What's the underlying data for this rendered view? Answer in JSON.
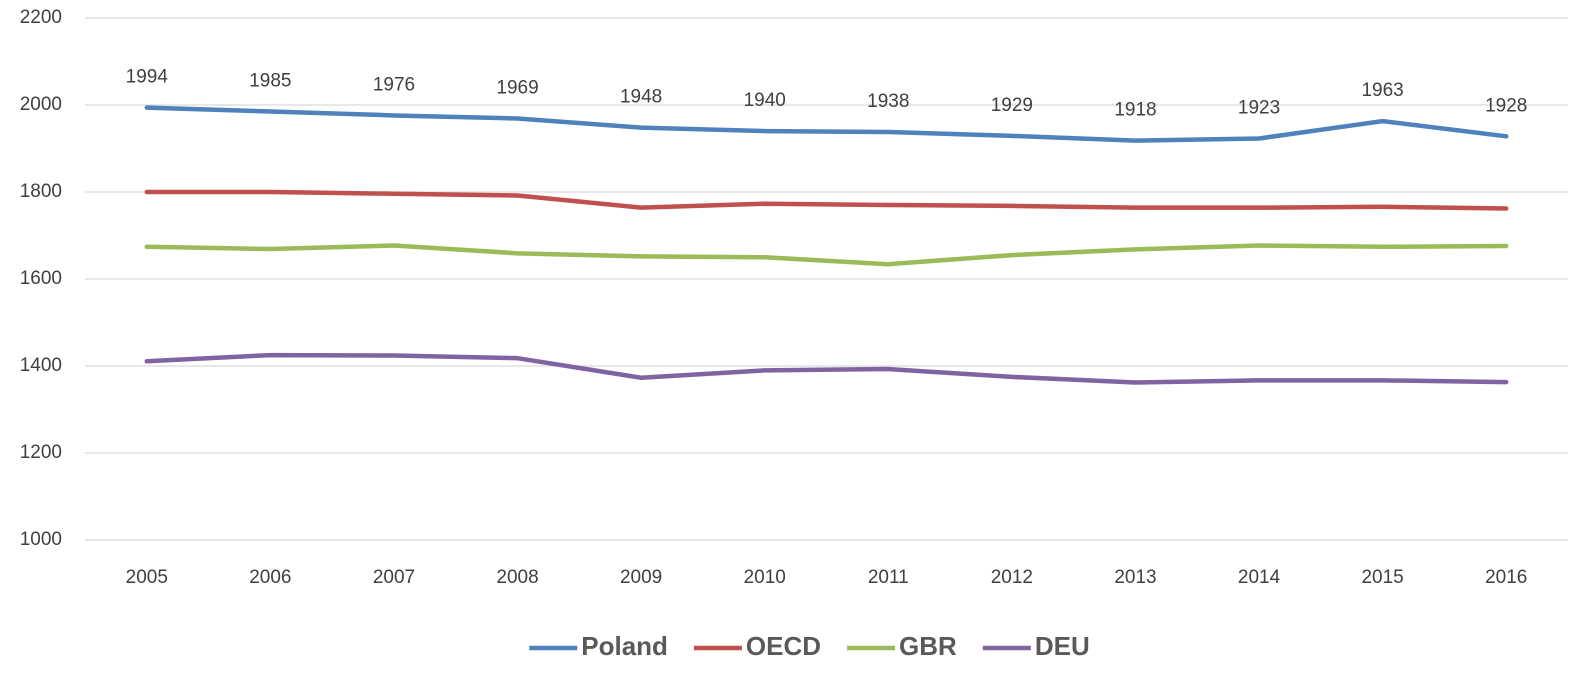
{
  "chart_data": {
    "type": "line",
    "categories": [
      "2005",
      "2006",
      "2007",
      "2008",
      "2009",
      "2010",
      "2011",
      "2012",
      "2013",
      "2014",
      "2015",
      "2016"
    ],
    "series": [
      {
        "name": "Poland",
        "color": "#4f81bd",
        "show_values": true,
        "values": [
          1994,
          1985,
          1976,
          1969,
          1948,
          1940,
          1938,
          1929,
          1918,
          1923,
          1963,
          1928
        ]
      },
      {
        "name": "OECD",
        "color": "#c0504d",
        "values": [
          1800,
          1800,
          1796,
          1792,
          1764,
          1773,
          1770,
          1768,
          1764,
          1764,
          1766,
          1762
        ]
      },
      {
        "name": "GBR",
        "color": "#9bbb59",
        "values": [
          1674,
          1669,
          1677,
          1659,
          1652,
          1650,
          1634,
          1655,
          1668,
          1677,
          1674,
          1676
        ]
      },
      {
        "name": "DEU",
        "color": "#8064a2",
        "values": [
          1411,
          1425,
          1424,
          1418,
          1373,
          1390,
          1393,
          1375,
          1362,
          1367,
          1367,
          1363
        ]
      }
    ],
    "ylim": [
      1000,
      2200
    ],
    "yticks": [
      1000,
      1200,
      1400,
      1600,
      1800,
      2000,
      2200
    ],
    "grid": true,
    "legend": "bottom"
  }
}
